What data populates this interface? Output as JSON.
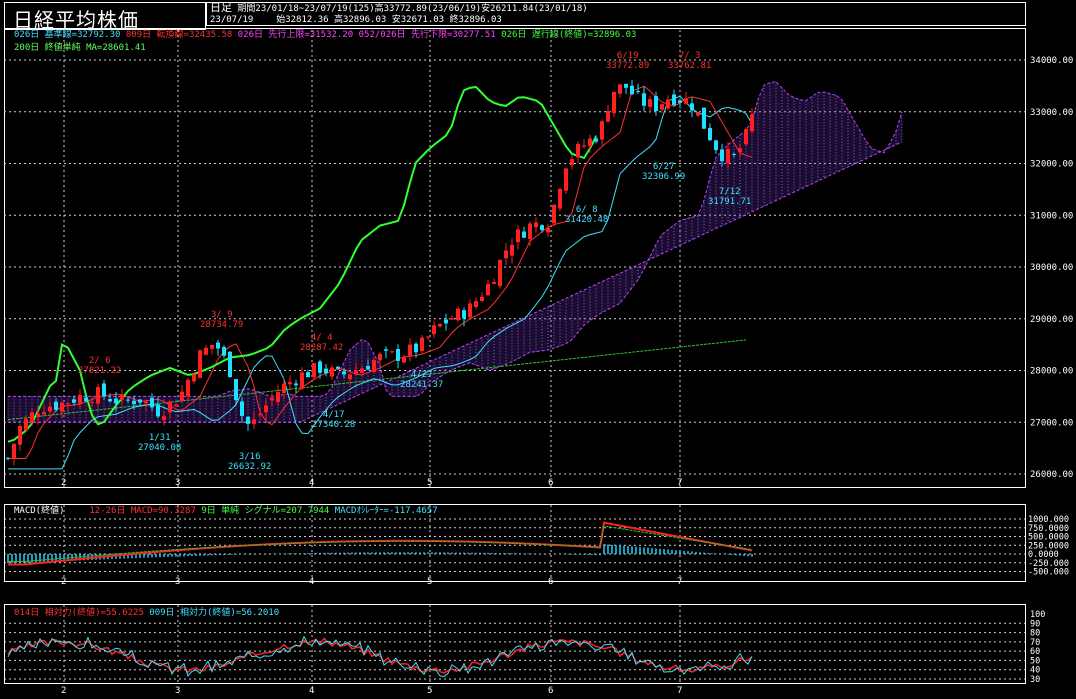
{
  "header": {
    "title": "日経平均株価",
    "mode": "日足",
    "period_line": "期間23/01/18~23/07/19(125)高33772.89(23/06/19)安26211.84(23/01/18)",
    "date": "23/07/19",
    "ohlc_line": "始32812.36 高32896.03 安32671.03 終32896.03"
  },
  "legend_main": {
    "kijun": "026日 基準線=32792.30",
    "tenkan": "009日 転換線=32435.58",
    "senkou_a": "026日 先行上限=31532.20",
    "senkou_b": "052/026日 先行下限=30277.51",
    "chikou": "026日 遅行線(終値)=32896.03",
    "ma200": "200日 終値単純 MA=28601.41"
  },
  "legend_macd": {
    "title": "MACD(終値)",
    "macd": "12-26日 MACD=90.3287",
    "signal": "9日 単純 シグナル=207.7944",
    "osc": "MACDｵｼﾚｰﾀｰ=-117.4657"
  },
  "legend_rsi": {
    "rsi14": "014日 相対力(終値)=55.6225",
    "rsi9": "009日 相対力(終値)=56.2010"
  },
  "annotations": {
    "a1": "2/ 6",
    "a1v": "27821.22",
    "a2": "3/ 9",
    "a2v": "28734.79",
    "a3": "4/ 4",
    "a3v": "28287.42",
    "a4": "6/19",
    "a4v": "33772.89",
    "a5": "7/ 3",
    "a5v": "33762.81",
    "b1": "1/31",
    "b1v": "27040.08",
    "b2": "3/16",
    "b2v": "26632.92",
    "b3": "4/17",
    "b3v": "27340.28",
    "b4": "4/27",
    "b4v": "28241.37",
    "b5": "6/ 8",
    "b5v": "31420.48",
    "b6": "6/27",
    "b6v": "32306.99",
    "b7": "7/12",
    "b7v": "31791.71"
  },
  "axes": {
    "price_ticks": [
      "34000.00",
      "33000.00",
      "32000.00",
      "31000.00",
      "30000.00",
      "29000.00",
      "28000.00",
      "27000.00",
      "26000.00"
    ],
    "macd_ticks": [
      "1000.000",
      "750.0000",
      "500.0000",
      "250.0000",
      "0.0000",
      "-250.000",
      "-500.000"
    ],
    "rsi_ticks": [
      "100",
      "90",
      "80",
      "70",
      "60",
      "50",
      "40",
      "30"
    ],
    "month_labels": [
      "2",
      "3",
      "4",
      "5",
      "6",
      "7"
    ]
  },
  "colors": {
    "up": "#ff2020",
    "down": "#20e0ff",
    "kijun": "#40e0ff",
    "tenkan": "#ff3030",
    "chikou": "#30ff30",
    "cloud": "#c040ff",
    "ma": "#30c030",
    "grid": "#ffffff"
  }
}
